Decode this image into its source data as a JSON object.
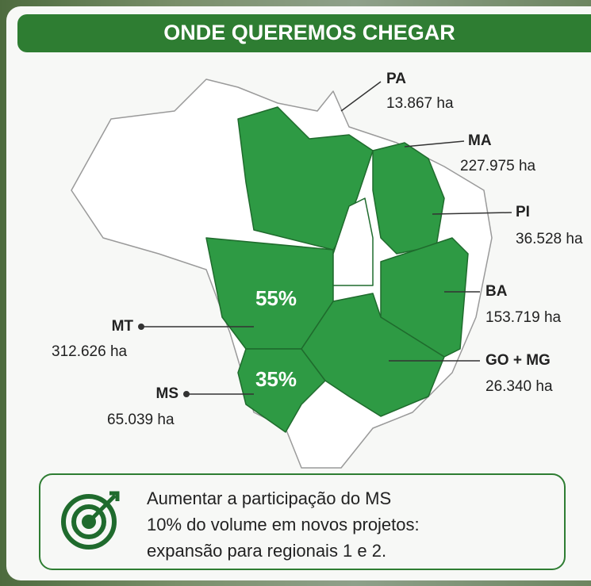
{
  "header": {
    "title": "ONDE QUEREMOS CHEGAR"
  },
  "map": {
    "regions": [
      {
        "name": "PA",
        "area": "13.867 ha"
      },
      {
        "name": "MA",
        "area": "227.975 ha"
      },
      {
        "name": "PI",
        "area": "36.528 ha"
      },
      {
        "name": "BA",
        "area": "153.719 ha"
      },
      {
        "name": "GO + MG",
        "area": "26.340 ha"
      },
      {
        "name": "MT",
        "area": "312.626 ha"
      },
      {
        "name": "MS",
        "area": "65.039 ha"
      }
    ],
    "shares": [
      "55%",
      "35%"
    ]
  },
  "goal": {
    "lines": [
      "Aumentar a participação do MS",
      "10% do volume em novos projetos:",
      "expansão para regionais 1 e 2."
    ]
  }
}
